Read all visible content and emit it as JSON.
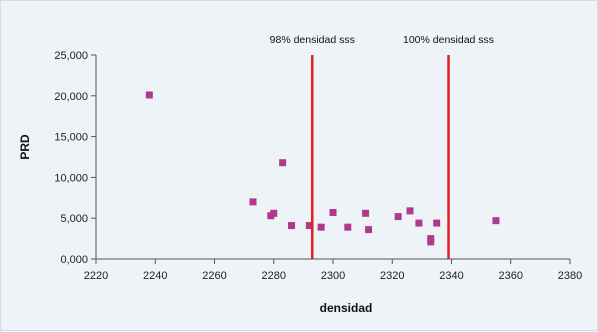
{
  "chart_data": {
    "type": "scatter",
    "title": "",
    "xlabel": "densidad",
    "ylabel": "PRD",
    "xlim": [
      2220,
      2380
    ],
    "ylim": [
      0,
      25000
    ],
    "x_ticks": [
      2220,
      2240,
      2260,
      2280,
      2300,
      2320,
      2340,
      2360,
      2380
    ],
    "x_tick_labels": [
      "2220",
      "2240",
      "2260",
      "2280",
      "2300",
      "2320",
      "2340",
      "2360",
      "2380"
    ],
    "y_ticks": [
      0,
      5000,
      10000,
      15000,
      20000,
      25000
    ],
    "y_tick_labels": [
      "0,000",
      "5,000",
      "10,000",
      "15,000",
      "20,000",
      "25,000"
    ],
    "grid": false,
    "legend": "none",
    "marker_color": "#b0398f",
    "line_color": "#e02020",
    "points": [
      {
        "x": 2238,
        "y": 20100
      },
      {
        "x": 2273,
        "y": 7000
      },
      {
        "x": 2279,
        "y": 5300
      },
      {
        "x": 2280,
        "y": 5600
      },
      {
        "x": 2283,
        "y": 11800
      },
      {
        "x": 2286,
        "y": 4100
      },
      {
        "x": 2292,
        "y": 4100
      },
      {
        "x": 2296,
        "y": 3900
      },
      {
        "x": 2300,
        "y": 5700
      },
      {
        "x": 2305,
        "y": 3900
      },
      {
        "x": 2311,
        "y": 5600
      },
      {
        "x": 2312,
        "y": 3600
      },
      {
        "x": 2322,
        "y": 5200
      },
      {
        "x": 2326,
        "y": 5900
      },
      {
        "x": 2329,
        "y": 4400
      },
      {
        "x": 2333,
        "y": 2500
      },
      {
        "x": 2333,
        "y": 2100
      },
      {
        "x": 2335,
        "y": 4400
      },
      {
        "x": 2355,
        "y": 4700
      }
    ],
    "vertical_lines": [
      {
        "x": 2293,
        "label": "98% densidad sss"
      },
      {
        "x": 2339,
        "label": "100% densidad sss"
      }
    ]
  }
}
